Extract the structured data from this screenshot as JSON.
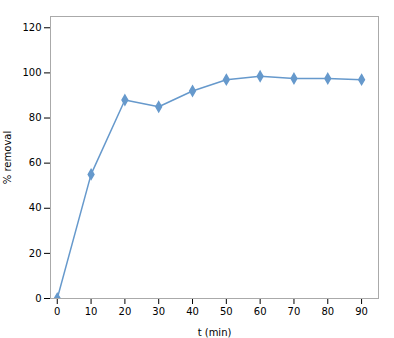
{
  "chart_data": {
    "type": "line",
    "x": [
      0,
      10,
      20,
      30,
      40,
      50,
      60,
      70,
      80,
      90
    ],
    "values": [
      0,
      55,
      88,
      85,
      92,
      97,
      98.5,
      97.5,
      97.5,
      97
    ],
    "xlabel": "t (min)",
    "ylabel": "% removal",
    "xlim": [
      -2,
      95
    ],
    "ylim": [
      0,
      125
    ],
    "xticks": [
      0,
      10,
      20,
      30,
      40,
      50,
      60,
      70,
      80,
      90
    ],
    "yticks": [
      0,
      20,
      40,
      60,
      80,
      100,
      120
    ],
    "color": "#6699cc",
    "marker": "diamond"
  }
}
